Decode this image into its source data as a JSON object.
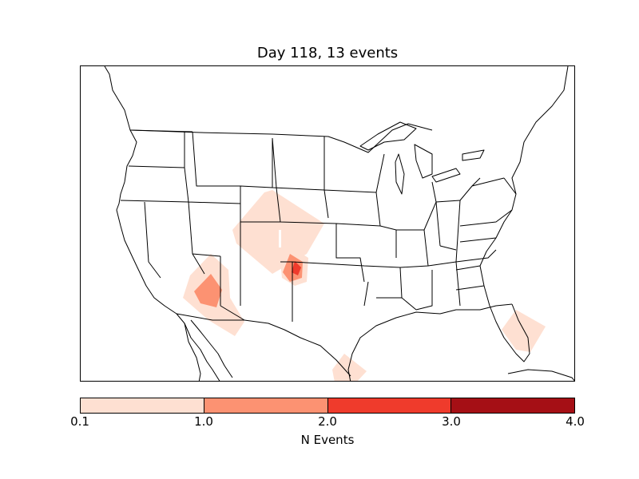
{
  "figure": {
    "title": "Day 118, 13 events"
  },
  "map": {
    "region": "North America (continental US)",
    "land_color": "#ffffff",
    "boundary_color": "#000000",
    "event_regions": [
      {
        "name": "Colorado / eastern Utah",
        "level": "0.1-1.0",
        "color": "#fee0d2"
      },
      {
        "name": "Colorado-Kansas-Oklahoma border",
        "level": "1.0-2.0",
        "color": "#fc9272"
      },
      {
        "name": "Colorado-Kansas-Oklahoma border",
        "level": "2.0-3.0",
        "color": "#ef3b2c"
      },
      {
        "name": "Arizona",
        "level": "0.1-1.0",
        "color": "#fee0d2"
      },
      {
        "name": "Arizona",
        "level": "1.0-2.0",
        "color": "#fc9272"
      },
      {
        "name": "South Texas coast",
        "level": "0.1-1.0",
        "color": "#fee0d2"
      },
      {
        "name": "South Florida",
        "level": "0.1-1.0",
        "color": "#fee0d2"
      }
    ]
  },
  "colorbar": {
    "label": "N Events",
    "ticks": [
      "0.1",
      "1.0",
      "2.0",
      "3.0",
      "4.0"
    ],
    "bins": [
      {
        "range": [
          0.1,
          1.0
        ],
        "color": "#fee0d2"
      },
      {
        "range": [
          1.0,
          2.0
        ],
        "color": "#fc9272"
      },
      {
        "range": [
          2.0,
          3.0
        ],
        "color": "#ef3b2c"
      },
      {
        "range": [
          3.0,
          4.0
        ],
        "color": "#a50f15"
      }
    ]
  }
}
